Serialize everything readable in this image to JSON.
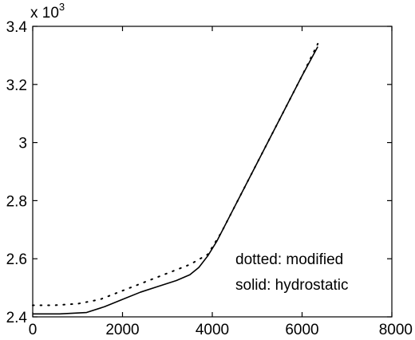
{
  "chart_data": {
    "type": "line",
    "title": "",
    "xlabel": "",
    "ylabel": "",
    "y_multiplier_label": {
      "prefix": "x 10",
      "exponent": "3"
    },
    "xlim": [
      0,
      8000
    ],
    "ylim": [
      2.4,
      3.4
    ],
    "x_ticks": [
      {
        "value": 0,
        "label": "0"
      },
      {
        "value": 2000,
        "label": "2000"
      },
      {
        "value": 4000,
        "label": "4000"
      },
      {
        "value": 6000,
        "label": "6000"
      },
      {
        "value": 8000,
        "label": "8000"
      }
    ],
    "y_ticks": [
      {
        "value": 2.4,
        "label": "2.4"
      },
      {
        "value": 2.6,
        "label": "2.6"
      },
      {
        "value": 2.8,
        "label": "2.8"
      },
      {
        "value": 3.0,
        "label": "3"
      },
      {
        "value": 3.2,
        "label": "3.2"
      },
      {
        "value": 3.4,
        "label": "3.4"
      }
    ],
    "grid": false,
    "legend_position": "bottom-right",
    "annotations": [
      "dotted: modified",
      "solid: hydrostatic"
    ],
    "series": [
      {
        "style": "solid",
        "x": [
          0,
          600,
          1200,
          1600,
          2000,
          2400,
          2800,
          3200,
          3500,
          3700,
          3900,
          4100,
          4500,
          5000,
          5500,
          6000,
          6350
        ],
        "y": [
          2.41,
          2.41,
          2.415,
          2.435,
          2.46,
          2.485,
          2.505,
          2.525,
          2.545,
          2.57,
          2.61,
          2.66,
          2.78,
          2.93,
          3.08,
          3.23,
          3.33
        ]
      },
      {
        "style": "dotted",
        "x": [
          0,
          500,
          1000,
          1500,
          2000,
          2500,
          3000,
          3500,
          3900,
          4200,
          4500,
          5000,
          5500,
          6000,
          6350
        ],
        "y": [
          2.44,
          2.44,
          2.445,
          2.46,
          2.49,
          2.52,
          2.55,
          2.58,
          2.615,
          2.69,
          2.78,
          2.93,
          3.08,
          3.23,
          3.34
        ]
      }
    ]
  }
}
